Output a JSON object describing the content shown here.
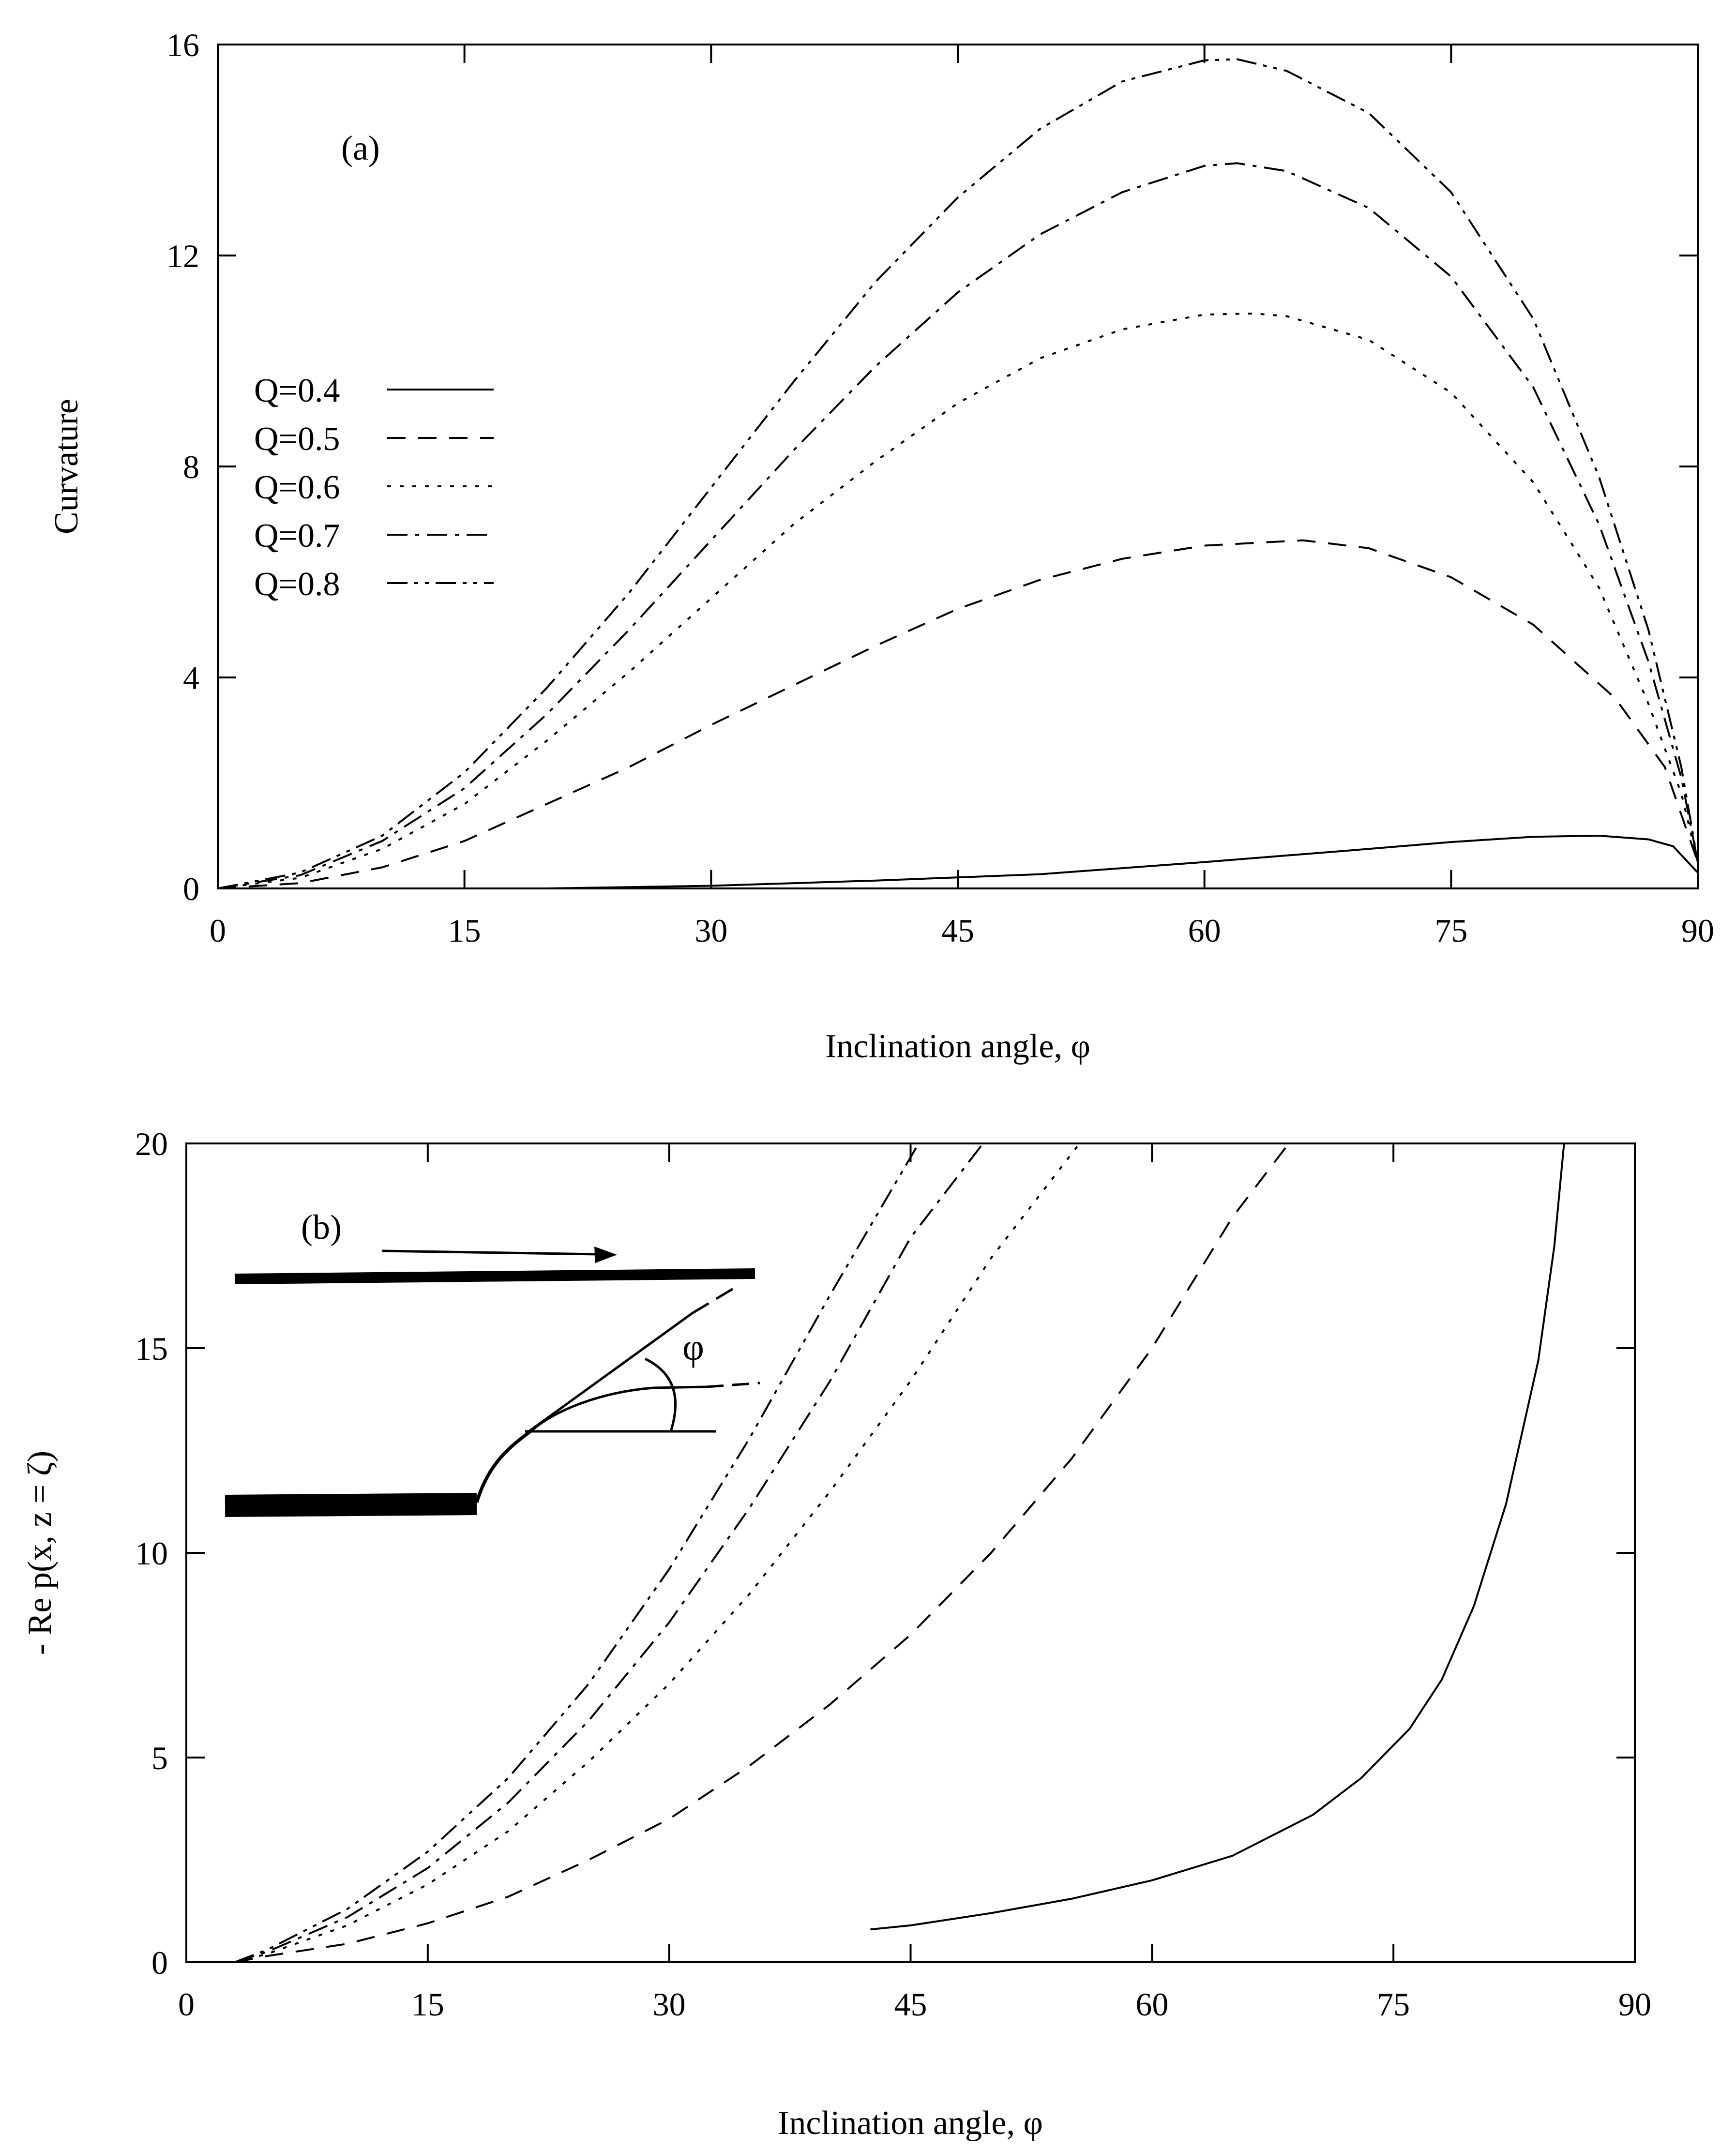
{
  "chart_data": [
    {
      "type": "line",
      "panel_label": "(a)",
      "title": "",
      "xlabel": "Inclination angle, φ",
      "ylabel": "Curvature",
      "xlim": [
        0,
        90
      ],
      "ylim": [
        0,
        16
      ],
      "xticks": [
        0,
        15,
        30,
        45,
        60,
        75,
        90
      ],
      "yticks": [
        0,
        4,
        8,
        12,
        16
      ],
      "grid": false,
      "legend_position": "left-middle",
      "series": [
        {
          "name": "Q=0.4",
          "dash": "solid",
          "x": [
            20,
            30,
            40,
            50,
            60,
            70,
            75,
            80,
            84,
            87,
            88.5,
            90
          ],
          "y": [
            0,
            0.05,
            0.15,
            0.27,
            0.5,
            0.75,
            0.88,
            0.98,
            1.0,
            0.93,
            0.8,
            0.3
          ]
        },
        {
          "name": "Q=0.5",
          "dash": "dash",
          "x": [
            0,
            5,
            10,
            15,
            20,
            25,
            30,
            35,
            40,
            45,
            50,
            55,
            60,
            66,
            70,
            75,
            80,
            85,
            88,
            90
          ],
          "y": [
            0,
            0.1,
            0.4,
            0.9,
            1.6,
            2.3,
            3.1,
            3.85,
            4.6,
            5.3,
            5.85,
            6.25,
            6.5,
            6.6,
            6.45,
            5.9,
            5.0,
            3.6,
            2.3,
            0.5
          ]
        },
        {
          "name": "Q=0.6",
          "dash": "dot",
          "x": [
            0,
            5,
            10,
            15,
            20,
            25,
            30,
            35,
            40,
            45,
            50,
            55,
            60,
            63,
            65,
            70,
            75,
            80,
            84,
            87,
            89,
            90
          ],
          "y": [
            0,
            0.2,
            0.75,
            1.6,
            2.8,
            4.1,
            5.5,
            6.9,
            8.1,
            9.2,
            10.05,
            10.6,
            10.88,
            10.9,
            10.85,
            10.4,
            9.4,
            7.7,
            5.7,
            3.5,
            1.8,
            0.5
          ]
        },
        {
          "name": "Q=0.7",
          "dash": "dashdot",
          "x": [
            0,
            5,
            10,
            15,
            20,
            25,
            30,
            35,
            40,
            45,
            50,
            55,
            60,
            62,
            65,
            70,
            75,
            80,
            84,
            87,
            89,
            90
          ],
          "y": [
            0,
            0.25,
            0.9,
            1.9,
            3.3,
            4.9,
            6.6,
            8.3,
            9.9,
            11.3,
            12.4,
            13.2,
            13.7,
            13.75,
            13.6,
            12.9,
            11.6,
            9.5,
            6.9,
            4.3,
            2.1,
            0.5
          ]
        },
        {
          "name": "Q=0.8",
          "dash": "dashdotdot",
          "x": [
            0,
            5,
            10,
            15,
            20,
            25,
            30,
            35,
            40,
            45,
            50,
            55,
            60,
            62,
            65,
            70,
            75,
            80,
            84,
            87,
            89,
            90
          ],
          "y": [
            0,
            0.3,
            1.0,
            2.2,
            3.8,
            5.6,
            7.6,
            9.6,
            11.5,
            13.1,
            14.4,
            15.3,
            15.7,
            15.72,
            15.5,
            14.7,
            13.2,
            10.8,
            7.8,
            4.9,
            2.3,
            0.5
          ]
        }
      ]
    },
    {
      "type": "line",
      "panel_label": "(b)",
      "title": "",
      "xlabel": "Inclination angle, φ",
      "ylabel": "- Re p(x, z = ζ)",
      "inset_label": "φ",
      "xlim": [
        0,
        90
      ],
      "ylim": [
        0,
        20
      ],
      "xticks": [
        0,
        15,
        30,
        45,
        60,
        75,
        90
      ],
      "yticks": [
        0,
        5,
        10,
        15,
        20
      ],
      "grid": false,
      "series": [
        {
          "name": "Q=0.4",
          "dash": "solid",
          "x": [
            42.5,
            45,
            50,
            55,
            60,
            65,
            70,
            73,
            76,
            78,
            80,
            82,
            84,
            85,
            85.6
          ],
          "y": [
            0.8,
            0.9,
            1.2,
            1.55,
            2.0,
            2.6,
            3.6,
            4.5,
            5.7,
            6.9,
            8.7,
            11.2,
            14.7,
            17.5,
            20.0
          ]
        },
        {
          "name": "Q=0.5",
          "dash": "dash",
          "x": [
            3,
            5,
            10,
            15,
            20,
            25,
            30,
            35,
            40,
            45,
            50,
            55,
            60,
            65,
            68.5
          ],
          "y": [
            0,
            0.15,
            0.45,
            0.95,
            1.6,
            2.5,
            3.5,
            4.8,
            6.3,
            8.0,
            10.0,
            12.3,
            15.0,
            18.2,
            20.0
          ]
        },
        {
          "name": "Q=0.6",
          "dash": "dot",
          "x": [
            3,
            5,
            10,
            15,
            20,
            25,
            30,
            35,
            40,
            45,
            50,
            55.5
          ],
          "y": [
            0,
            0.2,
            0.9,
            1.9,
            3.2,
            4.9,
            6.8,
            9.0,
            11.5,
            14.2,
            17.2,
            20.0
          ]
        },
        {
          "name": "Q=0.7",
          "dash": "dashdot",
          "x": [
            3,
            5,
            10,
            15,
            20,
            25,
            30,
            35,
            40,
            45,
            49.5
          ],
          "y": [
            0,
            0.25,
            1.1,
            2.3,
            3.9,
            5.9,
            8.3,
            11.1,
            14.2,
            17.7,
            20.0
          ]
        },
        {
          "name": "Q=0.8",
          "dash": "dashdotdot",
          "x": [
            3,
            5,
            10,
            15,
            20,
            25,
            30,
            35,
            40,
            45.5
          ],
          "y": [
            0,
            0.3,
            1.3,
            2.7,
            4.5,
            6.8,
            9.6,
            12.8,
            16.3,
            20.0
          ]
        }
      ]
    }
  ]
}
